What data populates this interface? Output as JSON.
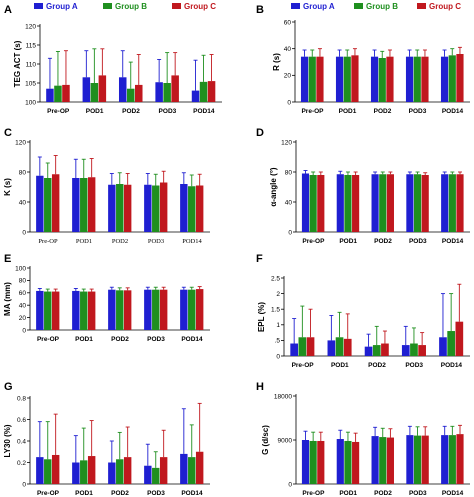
{
  "figure": {
    "colors": {
      "Group A": "#1f1fd1",
      "Group B": "#1f8f1f",
      "Group C": "#c0181e"
    }
  },
  "chart_data": [
    {
      "panel": "A",
      "type": "bar",
      "ylabel": "TEG ACT (s)",
      "categories": [
        "Pre-OP",
        "POD1",
        "POD2",
        "POD3",
        "POD14"
      ],
      "ylim": [
        100,
        120
      ],
      "yticks": [
        100,
        105,
        110,
        115,
        120
      ],
      "legend": {
        "position": "top",
        "entries": [
          "Group A",
          "Group B",
          "Group C"
        ]
      },
      "series": [
        {
          "name": "Group A",
          "values": [
            103.5,
            106.5,
            106.5,
            105.2,
            103.0
          ],
          "errors": [
            8,
            7,
            7,
            6,
            8
          ]
        },
        {
          "name": "Group B",
          "values": [
            104.3,
            105.0,
            103.5,
            105.0,
            105.3
          ],
          "errors": [
            9,
            9,
            7,
            8,
            7
          ]
        },
        {
          "name": "Group C",
          "values": [
            104.5,
            107.0,
            104.5,
            107.0,
            105.5
          ],
          "errors": [
            9,
            7,
            8,
            6,
            7
          ]
        }
      ]
    },
    {
      "panel": "B",
      "type": "bar",
      "ylabel": "R (s)",
      "categories": [
        "Pre-OP",
        "POD1",
        "POD2",
        "POD3",
        "POD14"
      ],
      "ylim": [
        0,
        60
      ],
      "yticks": [
        0,
        20,
        40,
        60
      ],
      "legend": {
        "position": "top",
        "entries": [
          "Group A",
          "Group B",
          "Group C"
        ]
      },
      "series": [
        {
          "name": "Group A",
          "values": [
            34,
            34,
            34,
            34,
            34
          ],
          "errors": [
            5,
            5,
            5,
            5,
            5
          ]
        },
        {
          "name": "Group B",
          "values": [
            34,
            34,
            33,
            34,
            35
          ],
          "errors": [
            5,
            5,
            5,
            5,
            5
          ]
        },
        {
          "name": "Group C",
          "values": [
            34,
            35,
            34,
            34,
            36
          ],
          "errors": [
            6,
            5,
            5,
            5,
            5
          ]
        }
      ]
    },
    {
      "panel": "C",
      "type": "bar",
      "ylabel": "K (s)",
      "categories": [
        "Pre-OP",
        "POD1",
        "POD2",
        "POD3",
        "POD14"
      ],
      "tick_font": "serif",
      "ylim": [
        0,
        120
      ],
      "yticks": [
        0,
        40,
        80,
        120
      ],
      "series": [
        {
          "name": "Group A",
          "values": [
            75,
            72,
            63,
            63,
            64
          ],
          "errors": [
            25,
            25,
            15,
            15,
            15
          ]
        },
        {
          "name": "Group B",
          "values": [
            72,
            72,
            64,
            62,
            61
          ],
          "errors": [
            20,
            25,
            15,
            15,
            15
          ]
        },
        {
          "name": "Group C",
          "values": [
            77,
            73,
            63,
            66,
            62
          ],
          "errors": [
            25,
            25,
            15,
            15,
            15
          ]
        }
      ]
    },
    {
      "panel": "D",
      "type": "bar",
      "ylabel": "α-angle (°)",
      "categories": [
        "Pre-OP",
        "POD1",
        "POD2",
        "POD3",
        "POD14"
      ],
      "ylim": [
        0,
        120
      ],
      "yticks": [
        0,
        40,
        80,
        120
      ],
      "series": [
        {
          "name": "Group A",
          "values": [
            78,
            77,
            77,
            77,
            77
          ],
          "errors": [
            4,
            4,
            3,
            3,
            3
          ]
        },
        {
          "name": "Group B",
          "values": [
            76,
            76,
            77,
            77,
            77
          ],
          "errors": [
            4,
            4,
            3,
            3,
            3
          ]
        },
        {
          "name": "Group C",
          "values": [
            76,
            76,
            77,
            76,
            77
          ],
          "errors": [
            4,
            4,
            3,
            3,
            3
          ]
        }
      ]
    },
    {
      "panel": "E",
      "type": "bar",
      "ylabel": "MA (mm)",
      "categories": [
        "Pre-OP",
        "POD1",
        "POD2",
        "POD3",
        "POD14"
      ],
      "ylim": [
        0,
        100
      ],
      "yticks": [
        0,
        20,
        40,
        60,
        80,
        100
      ],
      "series": [
        {
          "name": "Group A",
          "values": [
            63,
            63,
            65,
            65,
            65
          ],
          "errors": [
            4,
            4,
            4,
            4,
            4
          ]
        },
        {
          "name": "Group B",
          "values": [
            62,
            62,
            64,
            65,
            65
          ],
          "errors": [
            4,
            4,
            4,
            4,
            4
          ]
        },
        {
          "name": "Group C",
          "values": [
            62,
            62,
            64,
            65,
            66
          ],
          "errors": [
            4,
            4,
            4,
            4,
            4
          ]
        }
      ]
    },
    {
      "panel": "F",
      "type": "bar",
      "ylabel": "EPL (%)",
      "categories": [
        "Pre-OP",
        "POD1",
        "POD2",
        "POD3",
        "POD14"
      ],
      "ylim": [
        0,
        2.5
      ],
      "yticks": [
        0,
        0.5,
        1,
        1.5,
        2,
        2.5
      ],
      "ytick_labels": [
        "0",
        ".5",
        "1",
        "1.5",
        "2",
        "2.5"
      ],
      "series": [
        {
          "name": "Group A",
          "values": [
            0.4,
            0.5,
            0.3,
            0.35,
            0.6
          ],
          "errors": [
            0.8,
            0.8,
            0.4,
            0.6,
            1.4
          ]
        },
        {
          "name": "Group B",
          "values": [
            0.6,
            0.6,
            0.35,
            0.4,
            0.8
          ],
          "errors": [
            1.0,
            0.8,
            0.6,
            0.5,
            1.2
          ]
        },
        {
          "name": "Group C",
          "values": [
            0.6,
            0.55,
            0.4,
            0.35,
            1.1
          ],
          "errors": [
            0.9,
            0.8,
            0.4,
            0.4,
            1.2
          ]
        }
      ]
    },
    {
      "panel": "G",
      "type": "bar",
      "ylabel": "LY30 (%)",
      "categories": [
        "Pre-OP",
        "POD1",
        "POD2",
        "POD3",
        "POD14"
      ],
      "ylim": [
        0,
        0.8
      ],
      "yticks": [
        0,
        0.2,
        0.4,
        0.6,
        0.8
      ],
      "ytick_labels": [
        "0",
        "0.2",
        "0.4",
        "0.6",
        "0.8"
      ],
      "series": [
        {
          "name": "Group A",
          "values": [
            0.25,
            0.2,
            0.2,
            0.17,
            0.28
          ],
          "errors": [
            0.33,
            0.25,
            0.2,
            0.2,
            0.42
          ]
        },
        {
          "name": "Group B",
          "values": [
            0.23,
            0.22,
            0.23,
            0.15,
            0.25
          ],
          "errors": [
            0.35,
            0.3,
            0.25,
            0.15,
            0.3
          ]
        },
        {
          "name": "Group C",
          "values": [
            0.27,
            0.26,
            0.25,
            0.25,
            0.3
          ],
          "errors": [
            0.38,
            0.33,
            0.28,
            0.25,
            0.45
          ]
        }
      ]
    },
    {
      "panel": "H",
      "type": "bar",
      "ylabel": "G (d/sc)",
      "categories": [
        "Pre-OP",
        "POD1",
        "POD2",
        "POD3",
        "POD14"
      ],
      "ylim": [
        0,
        18000
      ],
      "yticks": [
        0,
        9000,
        18000
      ],
      "series": [
        {
          "name": "Group A",
          "values": [
            9000,
            9200,
            9800,
            10000,
            10000
          ],
          "errors": [
            1800,
            1800,
            1800,
            1800,
            1800
          ]
        },
        {
          "name": "Group B",
          "values": [
            8800,
            8800,
            9600,
            9900,
            10000
          ],
          "errors": [
            1800,
            1800,
            1800,
            1800,
            1800
          ]
        },
        {
          "name": "Group C",
          "values": [
            8800,
            8600,
            9500,
            9900,
            10200
          ],
          "errors": [
            1800,
            1800,
            1800,
            1800,
            1800
          ]
        }
      ]
    }
  ]
}
